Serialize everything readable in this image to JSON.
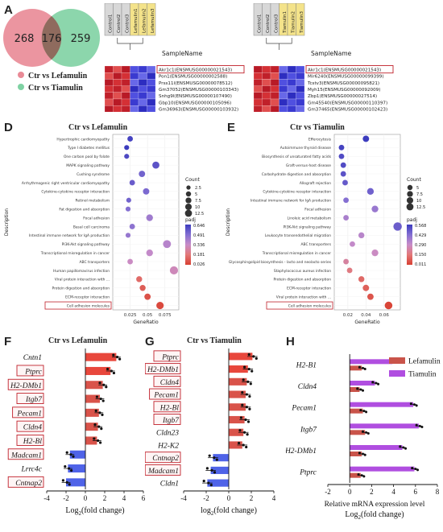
{
  "panels": {
    "A": {
      "label": "A",
      "venn": {
        "left_only": "268",
        "overlap": "176",
        "right_only": "259",
        "left_color": "#e98a96",
        "right_color": "#7fd2a3",
        "overlap_color": "#8f6b5e"
      },
      "legend": [
        {
          "text": "Ctr vs Lefamulin",
          "color": "#e98a96"
        },
        {
          "text": "Ctr vs Tiamulin",
          "color": "#7fd2a3"
        }
      ]
    },
    "B": {
      "label": "B",
      "col_header": "SampleName",
      "columns": [
        "Control1",
        "Control2",
        "Control3",
        "Lefamulin1",
        "Lefamulin2",
        "Lefamulin3"
      ],
      "genes": [
        "Akr1c1(ENSMUSG00000021543)",
        "Pon1(ENSMUSG00000002588)",
        "Prss11l(ENSMUSG00000078512)",
        "Gm37052(ENSMUSG00000103343)",
        "Snhg9l(ENSMUSG00000107490)",
        "Gbp10(ENSMUSG00000105096)",
        "Gm36963(ENSMUSG00000103932)",
        "Gm11687(ENSMUSG00000082480)",
        "Cep112os1(ENSMUSG00000086761)",
        "Gm28703(ENSMUSG00000099512)"
      ]
    },
    "C": {
      "label": "C",
      "col_header": "SampleName",
      "columns": [
        "Control1",
        "Control2",
        "Control3",
        "Tiamulin1",
        "Tiamulin2",
        "Tiamulin3"
      ],
      "genes": [
        "Akr1c1(ENSMUSG00000021543)",
        "Mir6240(ENSMUSG00000099399)",
        "Tcstv3(ENSMUSG00000095821)",
        "Myh15(ENSMUSG00000092009)",
        "Zbp1(ENSMUSG00000027514)",
        "Gm45540(ENSMUSG00000110397)",
        "Gm37465(ENSMUSG00000102423)",
        "2010009K17Rik(ENSMUSG00000100860)",
        "Gm11652(ENSMUSG00000083465)",
        "Gsta7(ENSMUSG00000040035)"
      ]
    },
    "D": {
      "label": "D",
      "title": "Ctr vs Lefamulin",
      "xlabel": "GeneRatio",
      "ylabel": "Description",
      "count_legend_title": "Count",
      "padj_legend_title": "padj",
      "padj_ticks": [
        "0.646",
        "0.491",
        "0.336",
        "0.181",
        "0.026"
      ]
    },
    "E": {
      "label": "E",
      "title": "Ctr vs Tiamulin",
      "xlabel": "GeneRatio",
      "ylabel": "Description",
      "count_legend_title": "Count",
      "padj_legend_title": "padj",
      "padj_ticks": [
        "0.568",
        "0.429",
        "0.290",
        "0.150",
        "0.011"
      ]
    },
    "F": {
      "label": "F",
      "title": "Ctr vs Lefamulin",
      "xlabel_base": "Log",
      "xlabel_sub": "2",
      "xlabel_rest": "(fold change)"
    },
    "G": {
      "label": "G",
      "title": "Ctr vs Tiamulin",
      "xlabel_base": "log",
      "xlabel_sub": "2",
      "xlabel_rest": "(fold change)"
    },
    "H": {
      "label": "H",
      "xlabel_line1": "Relative mRNA expression level",
      "xlabel_base": "Log",
      "xlabel_sub": "2",
      "xlabel_rest": "(fold change)",
      "legend": [
        {
          "text": "Lefamulin",
          "color": "#c9544a"
        },
        {
          "text": "Tiamulin",
          "color": "#b04ee0"
        }
      ]
    }
  },
  "chart_data": [
    {
      "id": "D",
      "type": "scatter",
      "title": "Ctr vs Lefamulin",
      "xlabel": "GeneRatio",
      "ylabel": "Description",
      "xlim": [
        0.0,
        0.095
      ],
      "xticks": [
        0.025,
        0.05,
        0.075
      ],
      "size_legend": [
        2.5,
        5.0,
        7.5,
        10.0,
        12.5
      ],
      "categories": [
        "Hypertrophic cardiomyopathy",
        "Type I diabetes mellitus",
        "One carbon pool by folate",
        "MAPK signaling pathway",
        "Cushing syndrome",
        "Arrhythmogenic right ventricular cardiomyopathy",
        "Cytokine-cytokine receptor interaction",
        "Retinol metabolism",
        "Fat digestion and absorption",
        "Focal adhesion",
        "Basal cell carcinoma",
        "Intestinal immune network for IgA production",
        "PI3K-Akt signaling pathway",
        "Transcriptional misregulation in cancer",
        "ABC transporters",
        "Human papillomavirus infection",
        "Viral protein interaction with ...",
        "Protein digestion and absorption",
        "ECM-receptor interaction",
        "Cell adhesion molecules"
      ],
      "points": [
        {
          "gr": 0.025,
          "count": 3,
          "padj": 0.6
        },
        {
          "gr": 0.02,
          "count": 2,
          "padj": 0.62
        },
        {
          "gr": 0.02,
          "count": 2,
          "padj": 0.58
        },
        {
          "gr": 0.062,
          "count": 7,
          "padj": 0.55
        },
        {
          "gr": 0.042,
          "count": 5,
          "padj": 0.5
        },
        {
          "gr": 0.028,
          "count": 3,
          "padj": 0.52
        },
        {
          "gr": 0.048,
          "count": 5,
          "padj": 0.48
        },
        {
          "gr": 0.023,
          "count": 2,
          "padj": 0.5
        },
        {
          "gr": 0.022,
          "count": 2,
          "padj": 0.46
        },
        {
          "gr": 0.053,
          "count": 6,
          "padj": 0.4
        },
        {
          "gr": 0.028,
          "count": 3,
          "padj": 0.44
        },
        {
          "gr": 0.022,
          "count": 2,
          "padj": 0.42
        },
        {
          "gr": 0.078,
          "count": 10,
          "padj": 0.35
        },
        {
          "gr": 0.053,
          "count": 6,
          "padj": 0.32
        },
        {
          "gr": 0.025,
          "count": 3,
          "padj": 0.3
        },
        {
          "gr": 0.088,
          "count": 11,
          "padj": 0.28
        },
        {
          "gr": 0.038,
          "count": 4,
          "padj": 0.12
        },
        {
          "gr": 0.043,
          "count": 4,
          "padj": 0.08
        },
        {
          "gr": 0.05,
          "count": 5,
          "padj": 0.05
        },
        {
          "gr": 0.068,
          "count": 8,
          "padj": 0.026
        }
      ]
    },
    {
      "id": "E",
      "type": "scatter",
      "title": "Ctr vs Tiamulin",
      "xlabel": "GeneRatio",
      "ylabel": "Description",
      "xlim": [
        0.005,
        0.078
      ],
      "xticks": [
        0.02,
        0.04,
        0.06
      ],
      "size_legend": [
        5.0,
        7.5,
        10.0,
        12.5
      ],
      "categories": [
        "Efferocytosis",
        "Autoimmune thyroid disease",
        "Biosynthesis of unsaturated fatty acids",
        "Graft-versus-host disease",
        "Carbohydrate digestion and absorption",
        "Allograft rejection",
        "Cytokine-cytokine receptor interaction",
        "Intestinal immune network for IgA production",
        "Focal adhesion",
        "Linoleic acid metabolism",
        "PI3K-Akt signaling pathway",
        "Leukocyte transendothelial migration",
        "ABC transporters",
        "Transcriptional misregulation in cancer",
        "Glycosphingolipid biosynthesis - lacto and neolacto series",
        "Staphylococcus aureus infection",
        "Protein digestion and absorption",
        "ECM-receptor interaction",
        "Viral protein interaction with ...",
        "Cell adhesion molecules"
      ],
      "points": [
        {
          "gr": 0.04,
          "count": 5,
          "padj": 0.54
        },
        {
          "gr": 0.013,
          "count": 3,
          "padj": 0.52
        },
        {
          "gr": 0.013,
          "count": 3,
          "padj": 0.5
        },
        {
          "gr": 0.015,
          "count": 3,
          "padj": 0.5
        },
        {
          "gr": 0.015,
          "count": 3,
          "padj": 0.48
        },
        {
          "gr": 0.017,
          "count": 3,
          "padj": 0.46
        },
        {
          "gr": 0.045,
          "count": 6,
          "padj": 0.44
        },
        {
          "gr": 0.018,
          "count": 3,
          "padj": 0.4
        },
        {
          "gr": 0.05,
          "count": 6,
          "padj": 0.36
        },
        {
          "gr": 0.018,
          "count": 3,
          "padj": 0.33
        },
        {
          "gr": 0.075,
          "count": 12,
          "padj": 0.45
        },
        {
          "gr": 0.035,
          "count": 4,
          "padj": 0.3
        },
        {
          "gr": 0.025,
          "count": 3,
          "padj": 0.28
        },
        {
          "gr": 0.05,
          "count": 6,
          "padj": 0.26
        },
        {
          "gr": 0.018,
          "count": 3,
          "padj": 0.2
        },
        {
          "gr": 0.022,
          "count": 3,
          "padj": 0.15
        },
        {
          "gr": 0.035,
          "count": 4,
          "padj": 0.1
        },
        {
          "gr": 0.04,
          "count": 5,
          "padj": 0.08
        },
        {
          "gr": 0.045,
          "count": 5,
          "padj": 0.05
        },
        {
          "gr": 0.065,
          "count": 9,
          "padj": 0.011
        }
      ]
    },
    {
      "id": "F",
      "type": "bar",
      "title": "Ctr vs Lefamulin",
      "xlim": [
        -4,
        6
      ],
      "xticks": [
        -4,
        -2,
        0,
        2,
        4,
        6
      ],
      "categories": [
        "Cntn1",
        "Ptprc",
        "H2-DMb1",
        "Itgb7",
        "Pecam1",
        "Cldn4",
        "H2-Bl",
        "Madcam1",
        "Lrrc4c",
        "Cntnap2"
      ],
      "boxed": [
        false,
        true,
        true,
        true,
        true,
        true,
        true,
        true,
        false,
        true
      ],
      "values": [
        3.2,
        2.6,
        1.8,
        1.5,
        1.4,
        1.3,
        1.2,
        -1.6,
        -1.8,
        -2.0
      ]
    },
    {
      "id": "G",
      "type": "bar",
      "title": "Ctr vs Tiamulin",
      "xlim": [
        -4,
        4
      ],
      "xticks": [
        -4,
        -2,
        0,
        2,
        4
      ],
      "categories": [
        "Ptprc",
        "H2-DMb1",
        "Cldn4",
        "Pecam1",
        "H2-Bl",
        "Itgb7",
        "Cldn23",
        "H2-K2",
        "Cntnap2",
        "Madcam1",
        "Cldn1"
      ],
      "boxed": [
        true,
        true,
        true,
        true,
        true,
        true,
        false,
        false,
        true,
        true,
        false
      ],
      "values": [
        2.1,
        1.7,
        1.6,
        1.5,
        1.5,
        1.4,
        1.3,
        1.2,
        -1.4,
        -1.6,
        -1.9
      ]
    },
    {
      "id": "H",
      "type": "bar",
      "xlim": [
        -2,
        8
      ],
      "xticks": [
        -2,
        0,
        2,
        4,
        6,
        8
      ],
      "categories": [
        "H2-B1",
        "Cldn4",
        "Pecam1",
        "Itgb7",
        "H2-DMb1",
        "Ptprc"
      ],
      "series": [
        {
          "name": "Lefamulin",
          "values": [
            1.1,
            0.9,
            1.2,
            1.4,
            1.1,
            1.0
          ]
        },
        {
          "name": "Tiamulin",
          "values": [
            3.9,
            2.3,
            5.8,
            6.3,
            4.8,
            5.9
          ]
        }
      ]
    }
  ]
}
